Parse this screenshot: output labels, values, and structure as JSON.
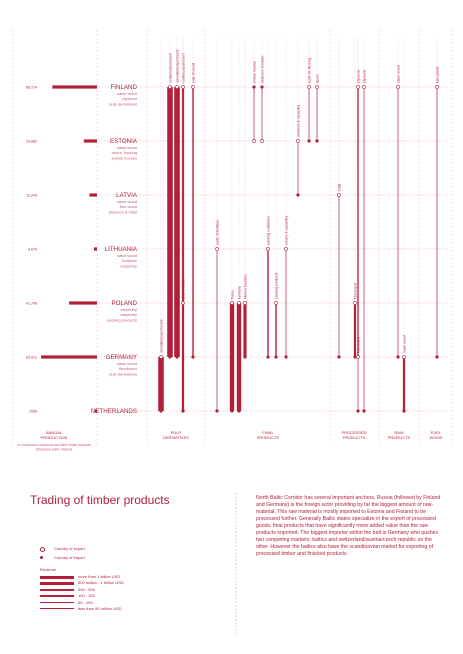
{
  "title": "Trading of timber products",
  "description": "North Baltic Corridor has several important anchors. Russia (followed by Finland and Germany) is the foreign actor providing by far the biggest amount of raw-material. This raw material is mostly imported to Estonia and Finland to be processed further. Generally Baltic states specialize in the export of processed goods, final products that have significantly more added value than the raw products imported. The biggest importer within the belt is Germany who pushes two competing markets: baltics and switzerland/austria/czech republic on the other. However the baltics also have the scandinavian market for exporting of processed timber and finished products.",
  "colors": {
    "accent": "#b3203a",
    "light": "#e6a4ae",
    "grid": "#e9b9c1",
    "text_light": "#c25e70"
  },
  "legend": {
    "export_label": "Country of export",
    "import_label": "Country of import",
    "revenue_title": "Revenue",
    "revenue_items": [
      {
        "label": "more than 1 billion USD",
        "tier": 6
      },
      {
        "label": "500 million - 1 billion USD",
        "tier": 5
      },
      {
        "label": "300 - 500",
        "tier": 4
      },
      {
        "label": "100 - 300",
        "tier": 3
      },
      {
        "label": "50 - 100",
        "tier": 2
      },
      {
        "label": "less than 50 million USD",
        "tier": 1
      }
    ]
  },
  "chart_data": {
    "type": "bar",
    "countries": [
      {
        "name": "FINLAND",
        "production": 66714,
        "production_label": "66,714",
        "products": [
          "sawn wood",
          "plywood",
          "pulp derivatives"
        ]
      },
      {
        "name": "ESTONIA",
        "production": 19682,
        "production_label": "19,682",
        "products": [
          "sawn wood",
          "doors, flooring",
          "prefab houses"
        ]
      },
      {
        "name": "LATVIA",
        "production": 11243,
        "production_label": "11,243",
        "products": [
          "sawn wood",
          "fuel wood",
          "plywood & OSB"
        ]
      },
      {
        "name": "LITHUANIA",
        "production": 4676,
        "production_label": "4,676",
        "products": [
          "sawn wood",
          "furniture",
          "carpentry"
        ]
      },
      {
        "name": "POLAND",
        "production": 41706,
        "production_label": "41,706",
        "products": [
          "carpentry",
          "carpentry",
          "packing products"
        ]
      },
      {
        "name": "GERMANY",
        "production": 83611,
        "production_label": "83,611",
        "products": [
          "sawn wood",
          "fibreboard",
          "pulp derivatives"
        ]
      },
      {
        "name": "NETHERLANDS",
        "production": 1059,
        "production_label": "1059",
        "products": []
      }
    ],
    "column_headers": [
      {
        "label": "ANNUAL PRODUCTION",
        "sub": "of roundwood, fuelwood and other basic products (thousand cubic meters)"
      },
      {
        "label": "PULP DERIVATIVES"
      },
      {
        "label": "FINAL PRODUCTS"
      },
      {
        "label": "PROCESSED PRODUCTS"
      },
      {
        "label": "RAW PRODUCTS"
      },
      {
        "label": "FUEL WOOD"
      }
    ],
    "flows": [
      {
        "product": "uncoated paperboard",
        "from": "GERMANY",
        "to": "NETHERLANDS",
        "tier": 6
      },
      {
        "product": "coated paperboard",
        "from": "FINLAND",
        "to": "GERMANY",
        "tier": 6
      },
      {
        "product": "uncoated paperboard",
        "from": "FINLAND",
        "to": "GERMANY",
        "tier": 6
      },
      {
        "product": "coated paperboard",
        "from": "FINLAND",
        "to": "NETHERLANDS",
        "tier": 3
      },
      {
        "product": "pulp of wood",
        "from": "FINLAND",
        "to": "GERMANY",
        "tier": 2
      },
      {
        "product": "pulp of wood",
        "from": "POLAND",
        "to": "NETHERLANDS",
        "tier": 2
      },
      {
        "product": "parts of furniture",
        "from": "LITHUANIA",
        "to": "NETHERLANDS",
        "tier": 1
      },
      {
        "product": "frame",
        "from": "POLAND",
        "to": "NETHERLANDS",
        "tier": 5
      },
      {
        "product": "furniture",
        "from": "POLAND",
        "to": "NETHERLANDS",
        "tier": 5
      },
      {
        "product": "kitchen furniture",
        "from": "POLAND",
        "to": "GERMANY",
        "tier": 4
      },
      {
        "product": "prefab houses",
        "from": "ESTONIA",
        "to": "FINLAND",
        "tier": 1
      },
      {
        "product": "bedroom furniture",
        "from": "ESTONIA",
        "to": "FINLAND",
        "tier": 1
      },
      {
        "product": "parts for flooring",
        "from": "FINLAND",
        "to": "ESTONIA",
        "tier": 1
      },
      {
        "product": "doors",
        "from": "FINLAND",
        "to": "ESTONIA",
        "tier": 1
      },
      {
        "product": "windows & carpentry",
        "from": "ESTONIA",
        "to": "LATVIA",
        "tier": 1
      },
      {
        "product": "joinery & carpentry",
        "from": "LITHUANIA",
        "to": "GERMANY",
        "tier": 1
      },
      {
        "product": "packing containers",
        "from": "LITHUANIA",
        "to": "GERMANY",
        "tier": 2
      },
      {
        "product": "packing products",
        "from": "POLAND",
        "to": "GERMANY",
        "tier": 2
      },
      {
        "product": "plywood",
        "from": "FINLAND",
        "to": "GERMANY",
        "tier": 2
      },
      {
        "product": "plywood",
        "from": "FINLAND",
        "to": "NETHERLANDS",
        "tier": 1
      },
      {
        "product": "OSB",
        "from": "LATVIA",
        "to": "GERMANY",
        "tier": 1
      },
      {
        "product": "fiberboard",
        "from": "POLAND",
        "to": "GERMANY",
        "tier": 3
      },
      {
        "product": "fiberboard",
        "from": "GERMANY",
        "to": "NETHERLANDS",
        "tier": 1
      },
      {
        "product": "sawn wood",
        "from": "FINLAND",
        "to": "GERMANY",
        "tier": 1
      },
      {
        "product": "sawn wood",
        "from": "GERMANY",
        "to": "NETHERLANDS",
        "tier": 3
      },
      {
        "product": "fuel pellets",
        "from": "FINLAND",
        "to": "GERMANY",
        "tier": 1
      }
    ]
  }
}
